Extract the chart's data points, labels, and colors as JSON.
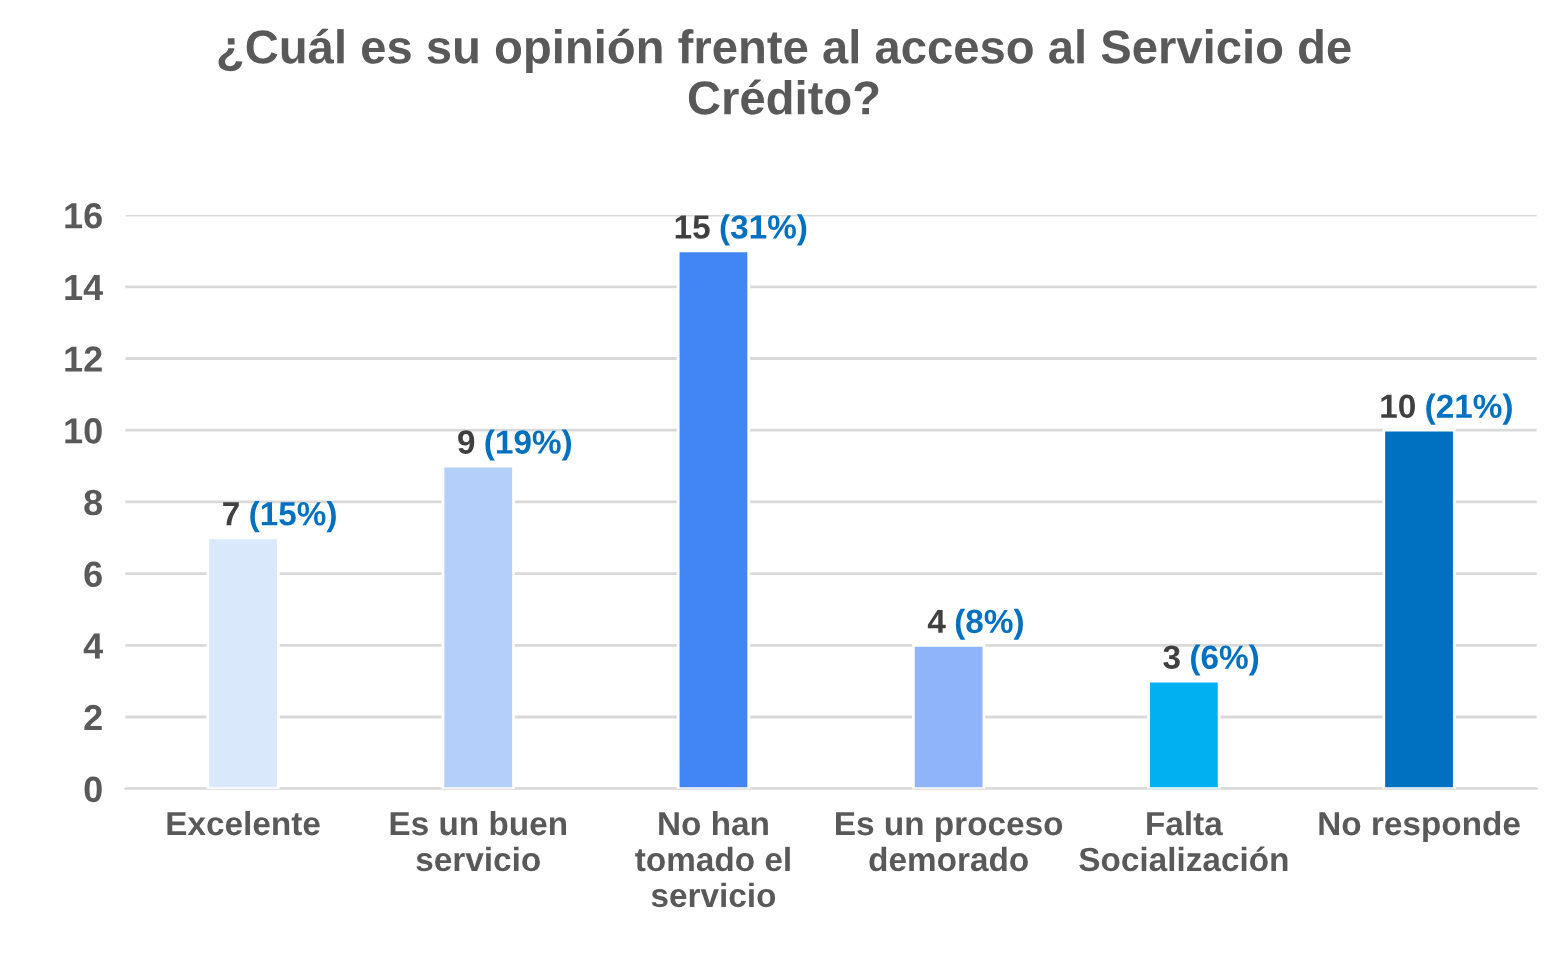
{
  "chart_data": {
    "type": "bar",
    "title": "¿Cuál es su opinión frente al acceso al Servicio de\nCrédito?",
    "categories": [
      "Excelente",
      "Es un buen\nservicio",
      "No han\ntomado el\nservicio",
      "Es un proceso\ndemorado",
      "Falta\nSocialización",
      "No responde"
    ],
    "values": [
      7,
      9,
      15,
      4,
      3,
      10
    ],
    "colors": [
      "#dae8fc",
      "#b4cffa",
      "#4285f4",
      "#8fb4f9",
      "#00b0f0",
      "#0070c0"
    ],
    "value_labels": [
      "7 (15%)",
      "9 (19%)",
      "15 (31%)",
      "4 (8%)",
      "3 (6%)",
      "10 (21%)"
    ],
    "ylim": [
      0,
      16
    ],
    "yticks": [
      0,
      2,
      4,
      6,
      8,
      10,
      12,
      14,
      16
    ],
    "grid": "y",
    "legend": false
  }
}
